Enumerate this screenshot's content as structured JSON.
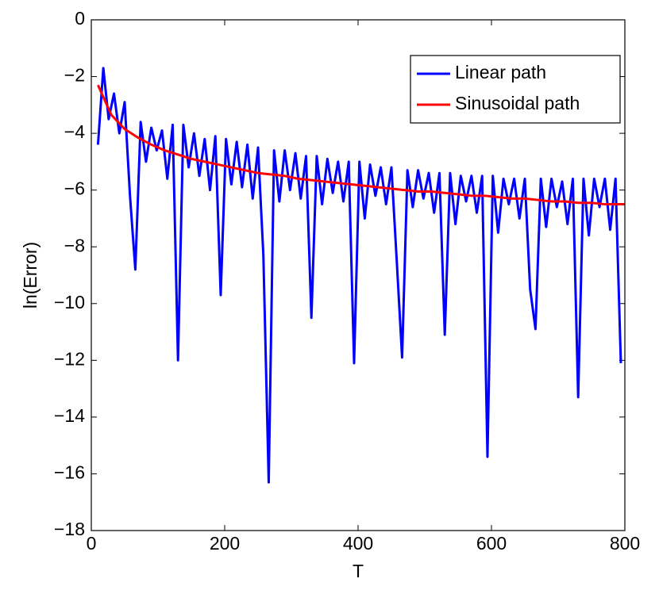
{
  "chart_data": {
    "type": "line",
    "xlabel": "T",
    "ylabel": "ln(Error)",
    "xlim": [
      0,
      800
    ],
    "ylim": [
      -18,
      0
    ],
    "xticks": [
      0,
      200,
      400,
      600,
      800
    ],
    "yticks": [
      0,
      {
        "value": -2,
        "label": "−2"
      },
      {
        "value": -4,
        "label": "−4"
      },
      {
        "value": -6,
        "label": "−6"
      },
      {
        "value": -8,
        "label": "−8"
      },
      {
        "value": -10,
        "label": "−10"
      },
      {
        "value": -12,
        "label": "−12"
      },
      {
        "value": -14,
        "label": "−14"
      },
      {
        "value": -16,
        "label": "−16"
      },
      {
        "value": -18,
        "label": "−18"
      }
    ],
    "grid": false,
    "legend": "northeast",
    "series": [
      {
        "name": "Linear path",
        "color": "#0000ff",
        "x": [
          10,
          18,
          26,
          34,
          42,
          50,
          58,
          66,
          74,
          82,
          90,
          98,
          106,
          114,
          122,
          130,
          138,
          146,
          154,
          162,
          170,
          178,
          186,
          194,
          202,
          210,
          218,
          226,
          234,
          242,
          250,
          258,
          266,
          274,
          282,
          290,
          298,
          306,
          314,
          322,
          330,
          338,
          346,
          354,
          362,
          370,
          378,
          386,
          394,
          402,
          410,
          418,
          426,
          434,
          442,
          450,
          458,
          466,
          474,
          482,
          490,
          498,
          506,
          514,
          522,
          530,
          538,
          546,
          554,
          562,
          570,
          578,
          586,
          594,
          602,
          610,
          618,
          626,
          634,
          642,
          650,
          658,
          666,
          674,
          682,
          690,
          698,
          706,
          714,
          722,
          730,
          738,
          746,
          754,
          762,
          770,
          778,
          786,
          794
        ],
        "values": [
          -4.4,
          -1.7,
          -3.5,
          -2.6,
          -4.0,
          -2.9,
          -6.2,
          -8.8,
          -3.6,
          -5.0,
          -3.8,
          -4.6,
          -3.9,
          -5.6,
          -3.7,
          -12.0,
          -3.7,
          -5.2,
          -4.0,
          -5.5,
          -4.2,
          -6.0,
          -4.1,
          -9.7,
          -4.2,
          -5.8,
          -4.3,
          -5.9,
          -4.4,
          -6.3,
          -4.5,
          -8.3,
          -16.3,
          -4.6,
          -6.4,
          -4.6,
          -6.0,
          -4.7,
          -6.3,
          -4.8,
          -10.5,
          -4.8,
          -6.5,
          -4.9,
          -6.1,
          -5.0,
          -6.4,
          -5.0,
          -12.1,
          -5.0,
          -7.0,
          -5.1,
          -6.2,
          -5.2,
          -6.5,
          -5.2,
          -8.5,
          -11.9,
          -5.3,
          -6.6,
          -5.3,
          -6.3,
          -5.4,
          -6.8,
          -5.4,
          -11.1,
          -5.4,
          -7.2,
          -5.5,
          -6.4,
          -5.5,
          -6.8,
          -5.5,
          -15.4,
          -5.5,
          -7.5,
          -5.6,
          -6.5,
          -5.6,
          -7.0,
          -5.6,
          -9.5,
          -10.9,
          -5.6,
          -7.3,
          -5.6,
          -6.6,
          -5.7,
          -7.2,
          -5.6,
          -13.3,
          -5.6,
          -7.6,
          -5.6,
          -6.6,
          -5.6,
          -7.4,
          -5.6,
          -12.1
        ]
      },
      {
        "name": "Sinusoidal path",
        "color": "#ff0000",
        "x": [
          10,
          30,
          50,
          70,
          90,
          110,
          130,
          150,
          170,
          190,
          210,
          230,
          250,
          270,
          290,
          310,
          330,
          350,
          370,
          390,
          410,
          430,
          450,
          470,
          490,
          510,
          530,
          550,
          570,
          590,
          610,
          630,
          650,
          670,
          690,
          710,
          730,
          750,
          770,
          790,
          800
        ],
        "values": [
          -2.3,
          -3.35,
          -3.85,
          -4.15,
          -4.4,
          -4.6,
          -4.75,
          -4.9,
          -5.0,
          -5.1,
          -5.2,
          -5.3,
          -5.4,
          -5.45,
          -5.5,
          -5.6,
          -5.65,
          -5.7,
          -5.75,
          -5.8,
          -5.85,
          -5.9,
          -5.95,
          -6.0,
          -6.05,
          -6.05,
          -6.1,
          -6.15,
          -6.2,
          -6.2,
          -6.25,
          -6.3,
          -6.3,
          -6.35,
          -6.4,
          -6.4,
          -6.45,
          -6.45,
          -6.5,
          -6.5,
          -6.5
        ]
      }
    ]
  }
}
